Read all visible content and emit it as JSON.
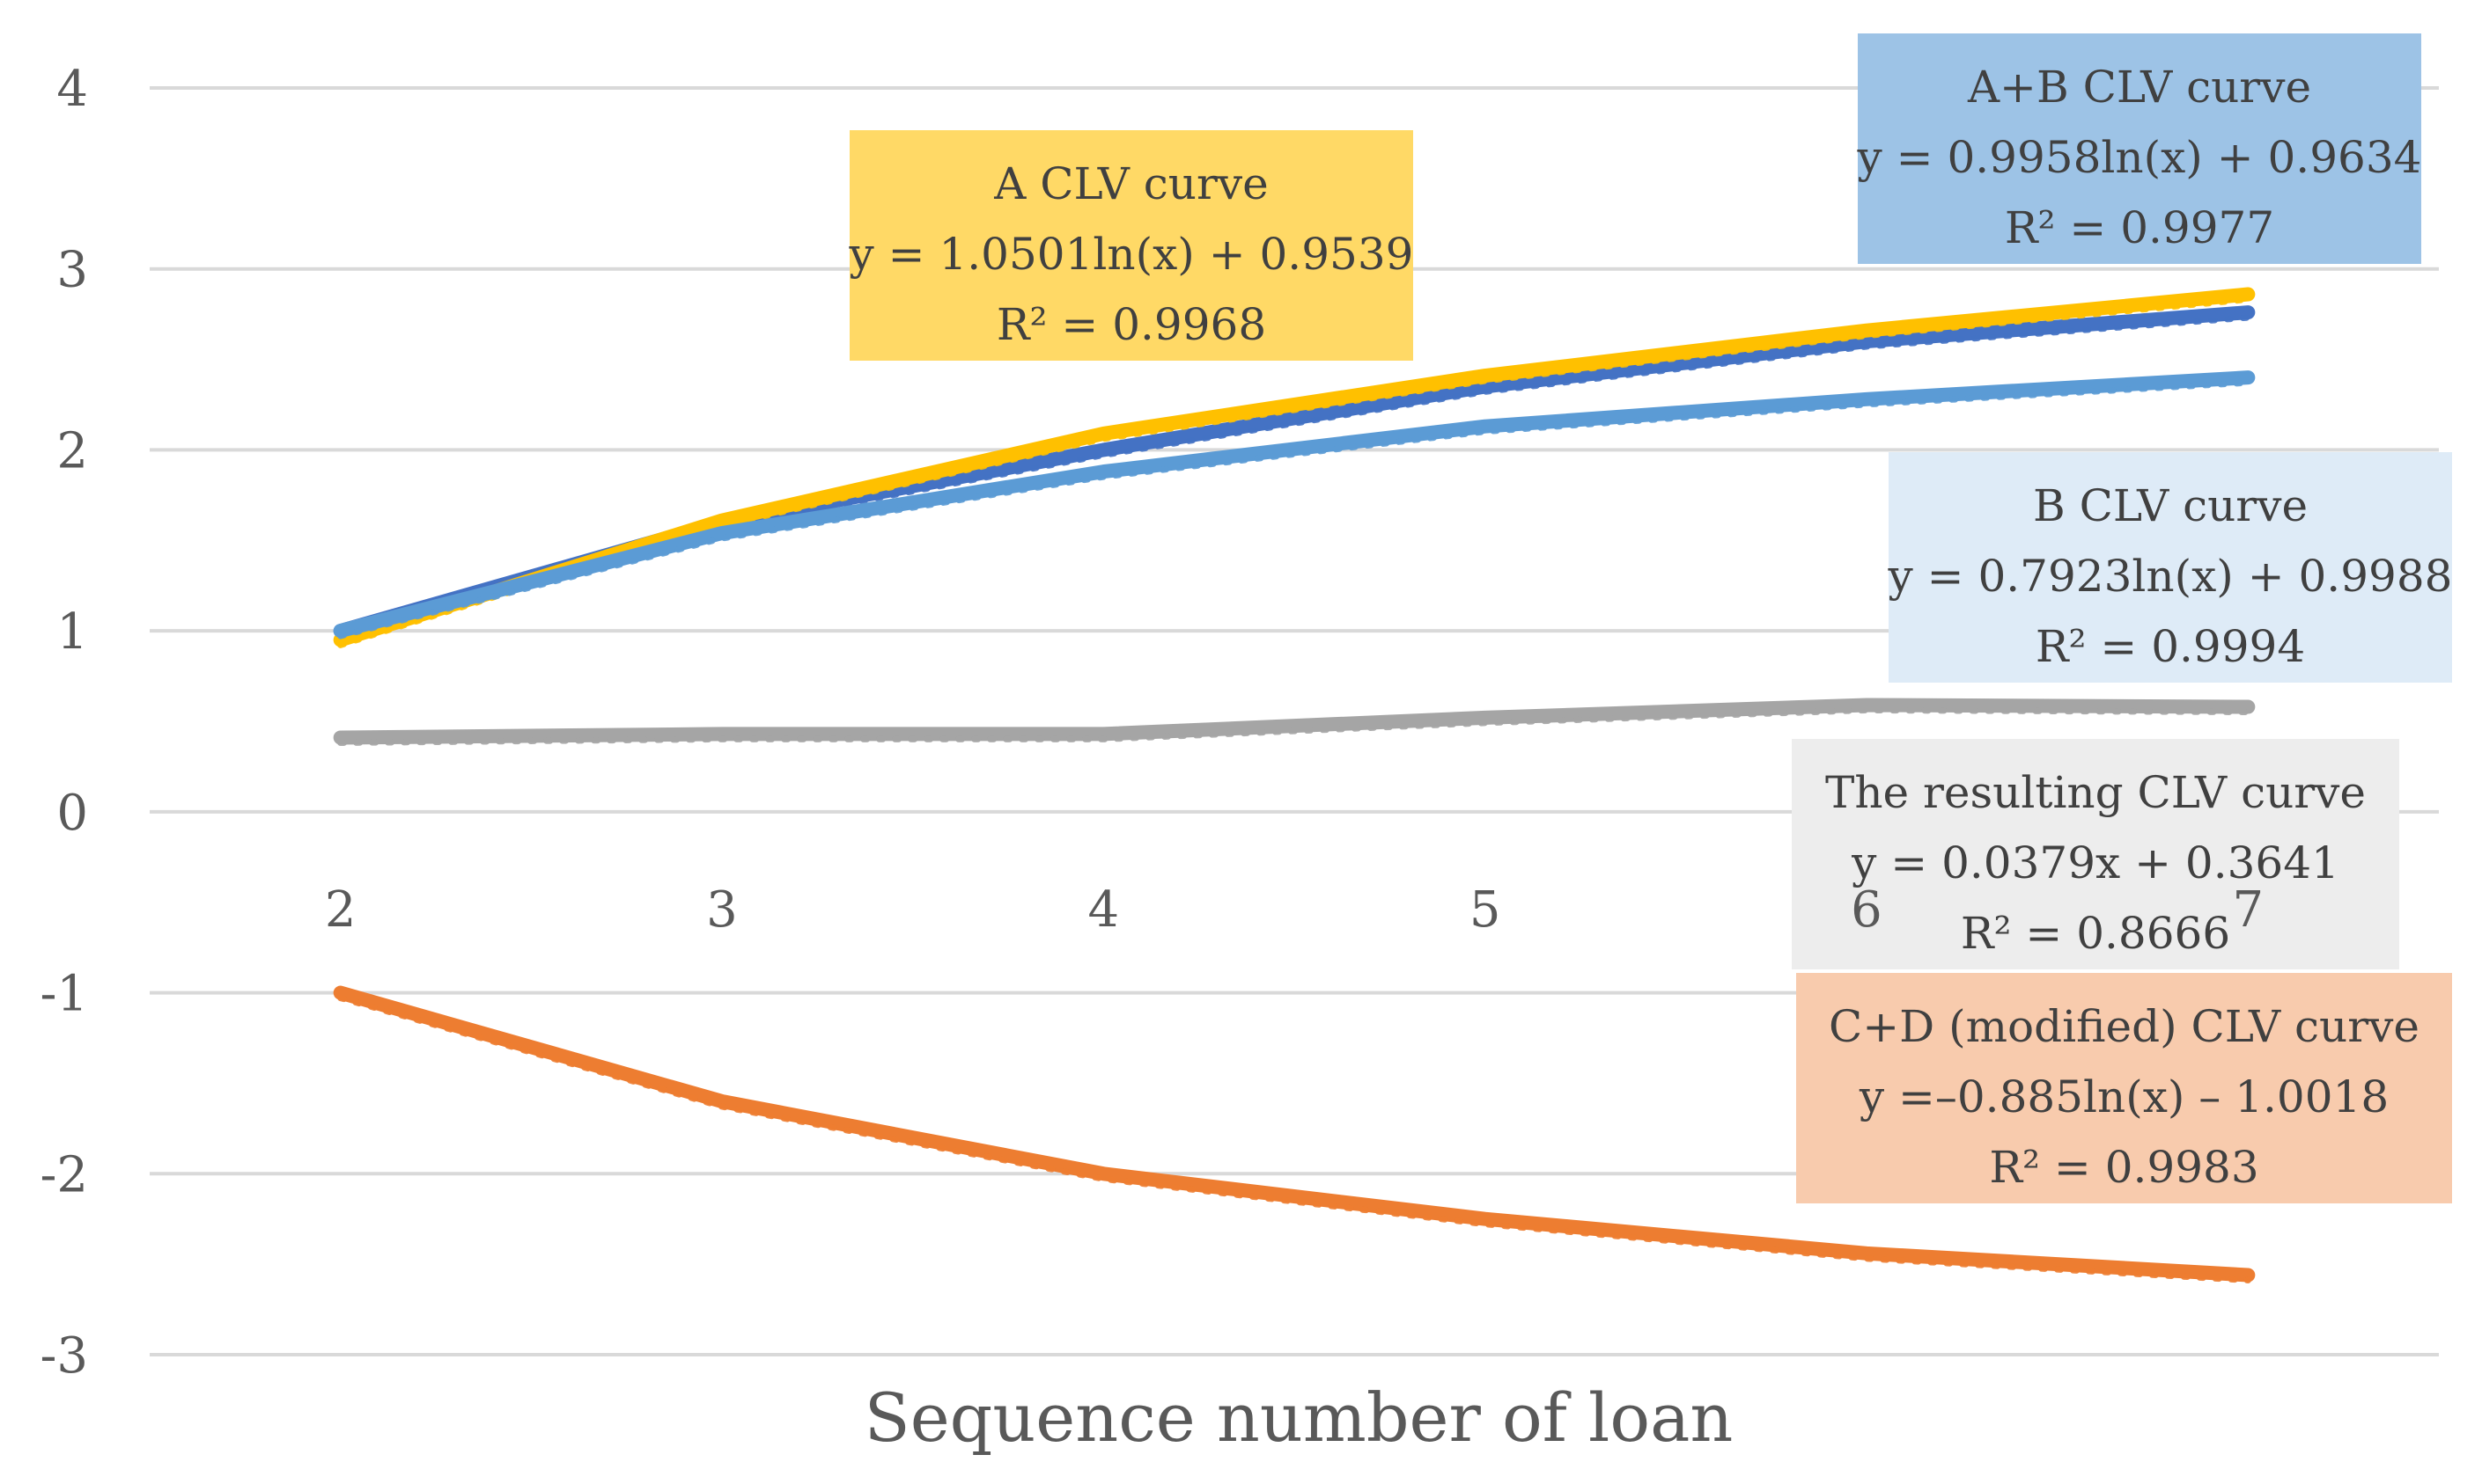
{
  "chart_data": {
    "type": "line",
    "title": "",
    "xlabel": "Sequence number of loan",
    "ylabel": "",
    "ylim": [
      -3,
      4
    ],
    "yticks": [
      4,
      3,
      2,
      1,
      0,
      -1,
      -2,
      -3
    ],
    "x": [
      2,
      3,
      4,
      5,
      6,
      7
    ],
    "grid": true,
    "series": [
      {
        "key": "resulting",
        "color": "#a5a5a5",
        "values": [
          0.41,
          0.43,
          0.43,
          0.52,
          0.59,
          0.58
        ]
      },
      {
        "key": "ab",
        "color": "#4472c4",
        "values": [
          1.0,
          1.6,
          2.0,
          2.35,
          2.6,
          2.76
        ]
      },
      {
        "key": "a",
        "color": "#ffc000",
        "values": [
          0.95,
          1.61,
          2.09,
          2.41,
          2.66,
          2.86
        ]
      },
      {
        "key": "b",
        "color": "#5b9bd5",
        "values": [
          1.0,
          1.54,
          1.88,
          2.13,
          2.28,
          2.4
        ]
      },
      {
        "key": "cd",
        "color": "#ed7d31",
        "values": [
          -1.0,
          -1.6,
          -2.0,
          -2.25,
          -2.44,
          -2.56
        ]
      }
    ],
    "annotations": [
      {
        "key": "a",
        "lines": [
          "A CLV curve",
          "y = 1.0501ln(x) + 0.9539",
          "R² = 0.9968"
        ],
        "bg": "#ffd966"
      },
      {
        "key": "ab",
        "lines": [
          "A+B CLV curve",
          "y = 0.9958ln(x) + 0.9634",
          "R² = 0.9977"
        ],
        "bg": "#9dc3e6"
      },
      {
        "key": "b",
        "lines": [
          "B CLV curve",
          "y = 0.7923ln(x) + 0.9988",
          "R² = 0.9994"
        ],
        "bg": "#deebf7"
      },
      {
        "key": "resulting",
        "lines": [
          "The resulting CLV curve",
          "y = 0.0379x + 0.3641",
          "R² = 0.8666"
        ],
        "bg": "#ededed"
      },
      {
        "key": "cd",
        "lines": [
          "C+D (modified) CLV curve",
          "y =–0.885ln(x) – 1.0018",
          "R² = 0.9983"
        ],
        "bg": "#f8cbad"
      }
    ]
  }
}
